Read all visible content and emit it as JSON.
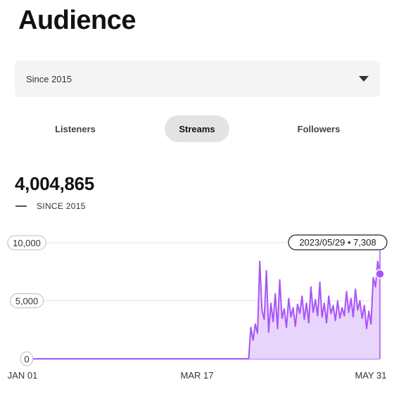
{
  "page": {
    "title": "Audience"
  },
  "range_select": {
    "value": "Since 2015",
    "icon": "chevron-down-icon"
  },
  "tabs": [
    {
      "label": "Listeners",
      "active": false
    },
    {
      "label": "Streams",
      "active": true
    },
    {
      "label": "Followers",
      "active": false
    }
  ],
  "summary": {
    "total": "4,004,865",
    "legend_label": "SINCE 2015"
  },
  "colors": {
    "series": "#a855f7",
    "fill": "#e8d5fb",
    "grid": "#e6e6e6",
    "text": "#121212"
  },
  "tooltip": {
    "text": "2023/05/29 • 7,308"
  },
  "chart_data": {
    "type": "area",
    "title": "",
    "xlabel": "",
    "ylabel": "",
    "x_tick_labels": [
      "JAN 01",
      "MAR 17",
      "MAY 31"
    ],
    "y_tick_labels": [
      "0",
      "5,000",
      "10,000"
    ],
    "ylim": [
      0,
      10000
    ],
    "grid": true,
    "series": [
      {
        "name": "SINCE 2015",
        "x_start": "JAN 01",
        "x_end": "MAY 31",
        "values": [
          0,
          0,
          0,
          0,
          0,
          0,
          0,
          0,
          0,
          0,
          0,
          0,
          0,
          0,
          0,
          0,
          0,
          0,
          0,
          0,
          0,
          0,
          0,
          0,
          0,
          0,
          0,
          0,
          0,
          0,
          0,
          0,
          0,
          0,
          0,
          0,
          0,
          0,
          0,
          0,
          0,
          0,
          0,
          0,
          0,
          0,
          0,
          0,
          0,
          0,
          0,
          0,
          0,
          0,
          0,
          0,
          0,
          0,
          0,
          0,
          0,
          0,
          0,
          0,
          0,
          0,
          0,
          0,
          0,
          0,
          0,
          0,
          0,
          0,
          0,
          0,
          0,
          0,
          0,
          0,
          0,
          0,
          0,
          0,
          0,
          0,
          0,
          0,
          0,
          0,
          0,
          0,
          0,
          0,
          0,
          0,
          0,
          0,
          0,
          0,
          0,
          2700,
          1600,
          3000,
          2200,
          8400,
          4200,
          3400,
          7600,
          2300,
          4800,
          3200,
          5600,
          2600,
          6800,
          3500,
          4300,
          2700,
          5200,
          3600,
          4400,
          2800,
          4700,
          3900,
          5400,
          3400,
          4800,
          3100,
          6200,
          4000,
          5100,
          3700,
          6600,
          3600,
          4800,
          3100,
          5400,
          3900,
          4600,
          3300,
          5000,
          3500,
          4400,
          3700,
          5800,
          4000,
          5200,
          3600,
          6000,
          4200,
          5000,
          3500,
          4600,
          2600,
          4100,
          3000,
          7000,
          6200,
          8400,
          7308
        ]
      }
    ],
    "annotations": [
      {
        "date": "2023/05/29",
        "value": 7308
      }
    ]
  }
}
